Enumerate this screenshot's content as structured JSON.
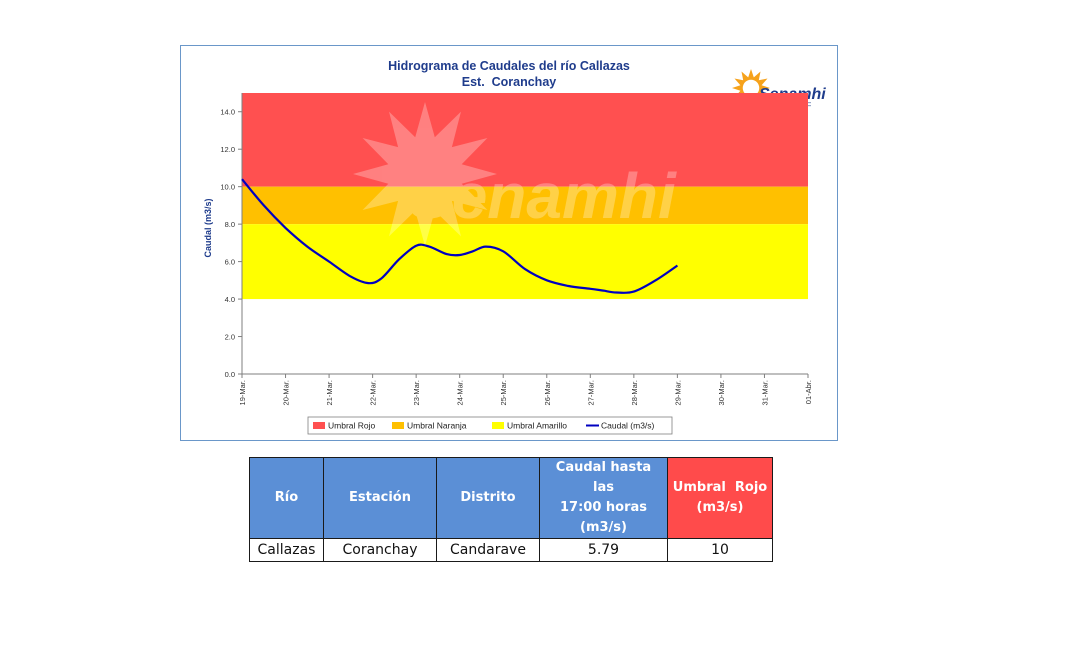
{
  "chart_data": {
    "type": "line",
    "title": "Hidrograma de Caudales del río Callazas",
    "subtitle": "Est.  Coranchay",
    "ylabel": "Caudal (m3/s)",
    "xlabel": "",
    "ylim": [
      0,
      15
    ],
    "yticks": [
      "0.0",
      "2.0",
      "4.0",
      "6.0",
      "8.0",
      "10.0",
      "12.0",
      "14.0"
    ],
    "xticks": [
      "19-Mar.",
      "20-Mar.",
      "21-Mar.",
      "22-Mar.",
      "23-Mar.",
      "24-Mar.",
      "25-Mar.",
      "26-Mar.",
      "27-Mar.",
      "28-Mar.",
      "29-Mar.",
      "30-Mar.",
      "31-Mar.",
      "01-Abr."
    ],
    "thresholds": [
      {
        "name": "Umbral Rojo",
        "from": 10,
        "to": 15,
        "color": "#ff5050"
      },
      {
        "name": "Umbral Naranja",
        "from": 8,
        "to": 10,
        "color": "#ffc000"
      },
      {
        "name": "Umbral Amarillo",
        "from": 4,
        "to": 8,
        "color": "#ffff00"
      }
    ],
    "series": [
      {
        "name": "Caudal (m3/s)",
        "color": "#0000c0",
        "x": [
          0,
          0.5,
          1.0,
          1.5,
          2.0,
          2.5,
          2.9,
          3.2,
          3.6,
          4.0,
          4.3,
          4.7,
          5.0,
          5.3,
          5.6,
          6.0,
          6.5,
          7.0,
          7.5,
          8.0,
          8.3,
          8.6,
          9.0,
          9.5,
          10.0
        ],
        "y": [
          10.4,
          9.0,
          7.8,
          6.8,
          6.0,
          5.2,
          4.85,
          5.1,
          6.1,
          6.85,
          6.8,
          6.4,
          6.35,
          6.55,
          6.8,
          6.55,
          5.6,
          5.0,
          4.7,
          4.55,
          4.45,
          4.35,
          4.4,
          5.0,
          5.79
        ]
      }
    ],
    "grid": false,
    "legend": "bottom"
  },
  "legend_items": [
    {
      "label": "Umbral Rojo",
      "color": "#ff5050",
      "kind": "fill"
    },
    {
      "label": "Umbral Naranja",
      "color": "#ffc000",
      "kind": "fill"
    },
    {
      "label": "Umbral Amarillo",
      "color": "#ffff00",
      "kind": "fill"
    },
    {
      "label": "Caudal (m3/s)",
      "color": "#0000c0",
      "kind": "line"
    }
  ],
  "logo": {
    "text": "Senamhi",
    "watermark": "Senamhi",
    "sun_color": "#f6a21b",
    "text_color": "#1f3c8c"
  },
  "table": {
    "headers": {
      "rio": "Río",
      "estacion": "Estación",
      "distrito": "Distrito",
      "caudal_l1": "Caudal hasta las",
      "caudal_l2": "17:00 horas",
      "caudal_l3": "(m3/s)",
      "umbral_l1": "Umbral  Rojo",
      "umbral_l2": "(m3/s)"
    },
    "row": {
      "rio": "Callazas",
      "estacion": "Coranchay",
      "distrito": "Candarave",
      "caudal": "5.79",
      "umbral": "10"
    }
  }
}
